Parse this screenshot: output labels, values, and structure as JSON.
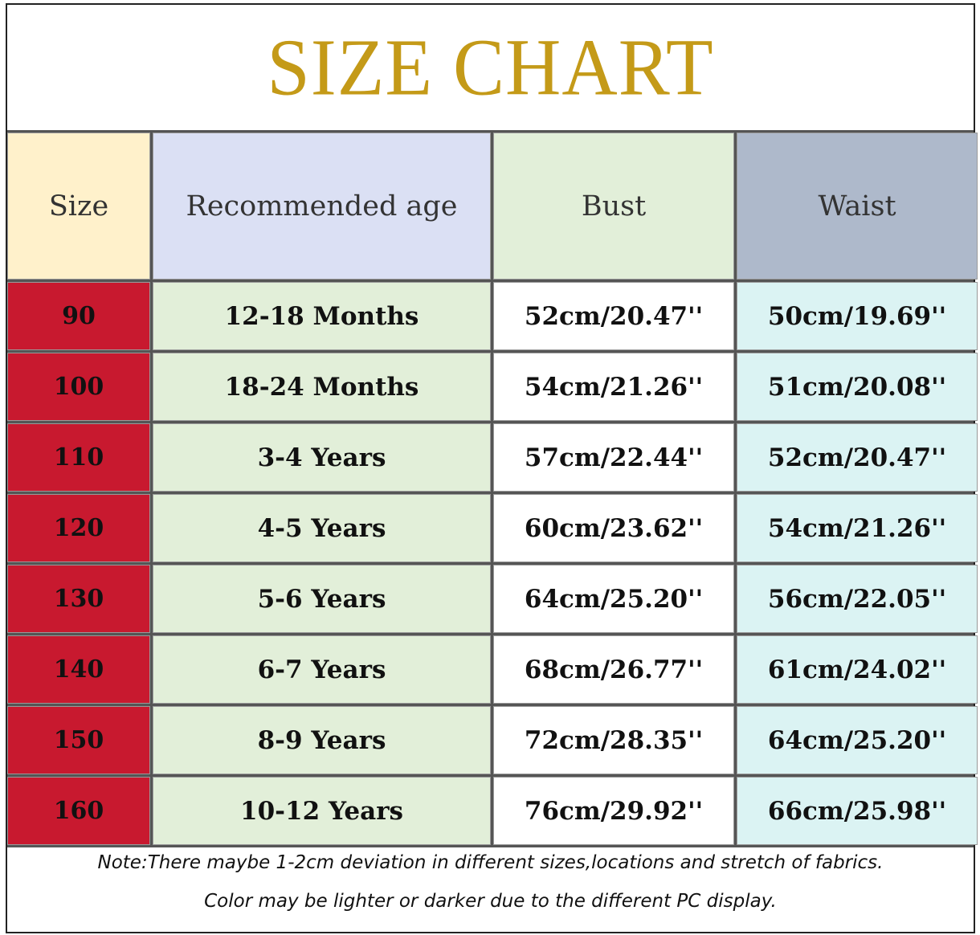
{
  "title": "SIZE CHART",
  "headers": [
    "Size",
    "Recommended age",
    "Bust",
    "Waist"
  ],
  "rows": [
    {
      "size": "90",
      "age": "12-18 Months",
      "bust": "52cm/20.47''",
      "waist": "50cm/19.69''"
    },
    {
      "size": "100",
      "age": "18-24 Months",
      "bust": "54cm/21.26''",
      "waist": "51cm/20.08''"
    },
    {
      "size": "110",
      "age": "3-4 Years",
      "bust": "57cm/22.44''",
      "waist": "52cm/20.47''"
    },
    {
      "size": "120",
      "age": "4-5 Years",
      "bust": "60cm/23.62''",
      "waist": "54cm/21.26''"
    },
    {
      "size": "130",
      "age": "5-6 Years",
      "bust": "64cm/25.20''",
      "waist": "56cm/22.05''"
    },
    {
      "size": "140",
      "age": "6-7 Years",
      "bust": "68cm/26.77''",
      "waist": "61cm/24.02''"
    },
    {
      "size": "150",
      "age": "8-9 Years",
      "bust": "72cm/28.35''",
      "waist": "64cm/25.20''"
    },
    {
      "size": "160",
      "age": "10-12 Years",
      "bust": "76cm/29.92''",
      "waist": "66cm/25.98''"
    }
  ],
  "notes": [
    "Note:There maybe 1-2cm deviation in different sizes,locations and stretch of fabrics.",
    "Color may be lighter or darker due to the different PC display."
  ],
  "colors": {
    "title": "#c49a18",
    "size_header": "#fff1cb",
    "age_header": "#dbe0f4",
    "bust_header": "#e2efd9",
    "waist_header": "#aeb9cb",
    "size_cells": "#c8192f",
    "age_cells": "#e2efd9",
    "bust_cells": "#ffffff",
    "waist_cells": "#dbf3f3"
  }
}
